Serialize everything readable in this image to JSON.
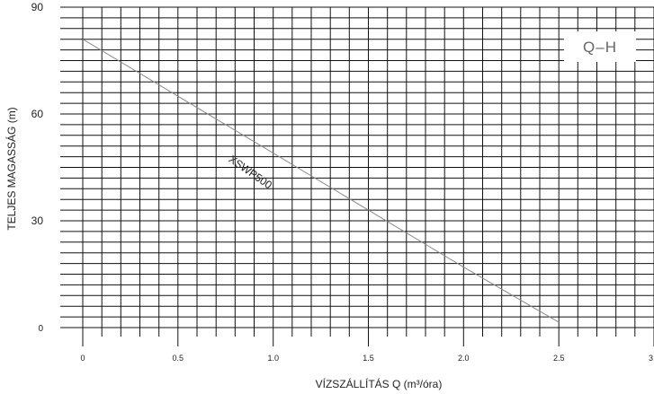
{
  "chart_data": {
    "type": "line",
    "title": "",
    "badge": "Q–H",
    "xlabel": "VÍZSZÁLLÍTÁS Q (m³/óra)",
    "ylabel": "TELJES MAGASSÁG (m)",
    "xlim": [
      0,
      3
    ],
    "ylim": [
      0,
      90
    ],
    "x_ticks": [
      "0",
      "0.5",
      "1.0",
      "1.5",
      "2.0",
      "2.5",
      "3"
    ],
    "y_ticks": [
      "0",
      "30",
      "60",
      "90"
    ],
    "grid": true,
    "series": [
      {
        "name": "XSWP500",
        "x": [
          0,
          0.5,
          1.0,
          1.5,
          2.0,
          2.5
        ],
        "y": [
          81,
          65,
          49,
          33,
          17,
          1.5
        ]
      }
    ]
  },
  "colors": {
    "grid": "#111111",
    "line": "#8a8a8a",
    "text": "#222222"
  }
}
